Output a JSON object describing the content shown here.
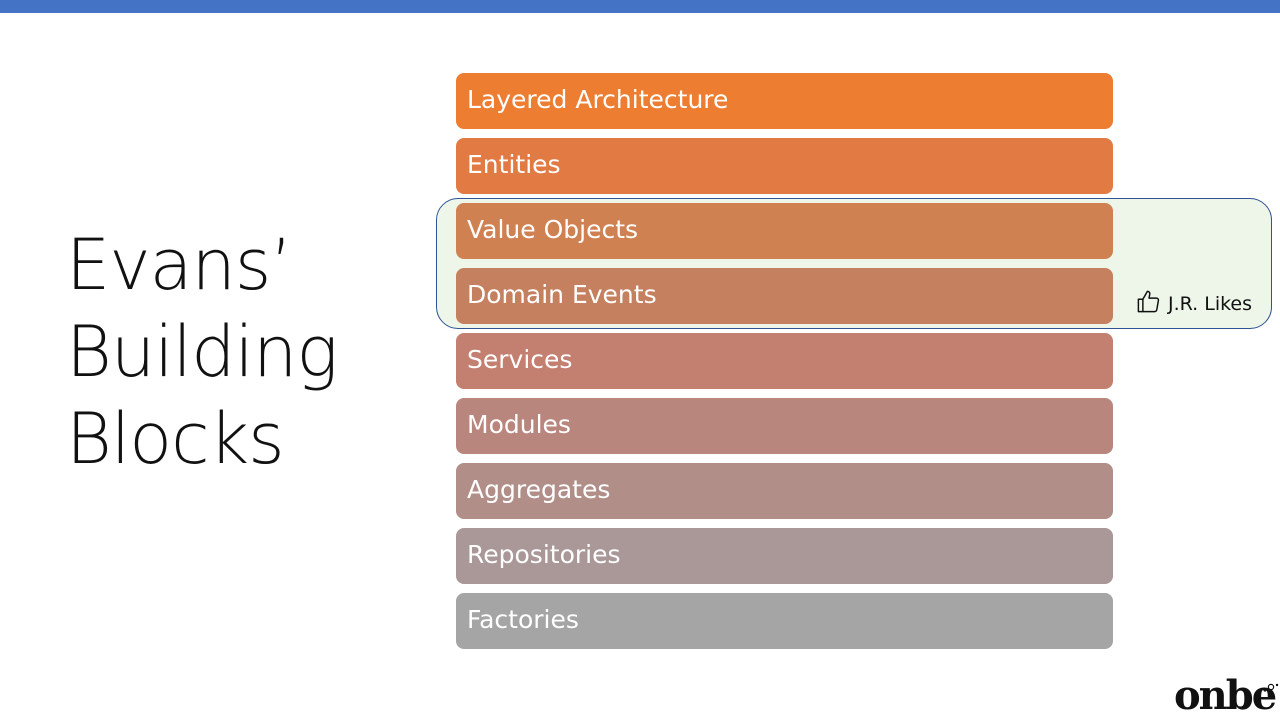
{
  "slide": {
    "title_lines": [
      "Evans’",
      "Building",
      "Blocks"
    ],
    "accent_color": "#4472c4"
  },
  "blocks": [
    {
      "label": "Layered Architecture",
      "color": "#ed7d31"
    },
    {
      "label": "Entities",
      "color": "#e27b43"
    },
    {
      "label": "Value Objects",
      "color": "#d08152"
    },
    {
      "label": "Domain Events",
      "color": "#c5805f"
    },
    {
      "label": "Services",
      "color": "#c37f70"
    },
    {
      "label": "Modules",
      "color": "#b9867e"
    },
    {
      "label": "Aggregates",
      "color": "#b18f88"
    },
    {
      "label": "Repositories",
      "color": "#aa9898"
    },
    {
      "label": "Factories",
      "color": "#a5a5a5"
    }
  ],
  "highlight": {
    "label": "J.R. Likes",
    "icon": "thumbs-up-icon",
    "border_color": "#2f5496",
    "fill_color": "#eef5e9"
  },
  "logo": {
    "text": "onbe"
  }
}
